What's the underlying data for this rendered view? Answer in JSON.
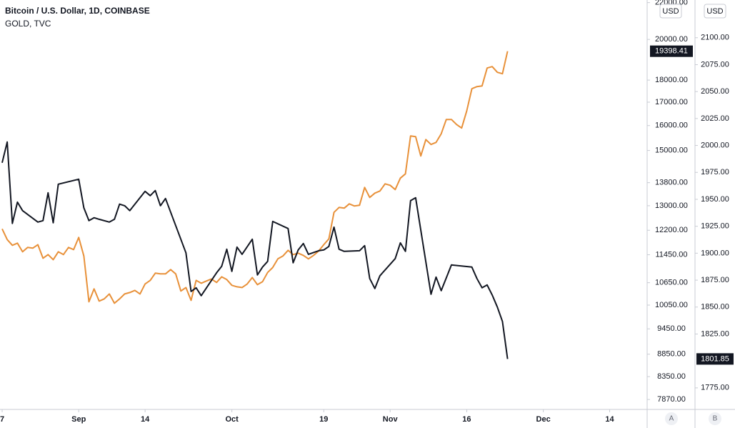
{
  "chart_data": {
    "type": "line",
    "ylog": true,
    "xlim": [
      -0.42,
      126.2
    ],
    "xticks": [
      {
        "value": 0,
        "label": "7"
      },
      {
        "value": 15,
        "label": "Sep"
      },
      {
        "value": 28,
        "label": "14"
      },
      {
        "value": 45,
        "label": "Oct"
      },
      {
        "value": 63,
        "label": "19"
      },
      {
        "value": 76,
        "label": "Nov"
      },
      {
        "value": 91,
        "label": "16"
      },
      {
        "value": 106,
        "label": "Dec"
      },
      {
        "value": 119,
        "label": "14"
      }
    ],
    "ylim": [
      7670,
      22150
    ],
    "yticks": [
      {
        "value": 22000,
        "label": "22000.00"
      },
      {
        "value": 20000,
        "label": "20000.00"
      },
      {
        "value": 18000,
        "label": "18000.00"
      },
      {
        "value": 17000,
        "label": "17000.00"
      },
      {
        "value": 16000,
        "label": "16000.00"
      },
      {
        "value": 15000,
        "label": "15000.00"
      },
      {
        "value": 13800,
        "label": "13800.00"
      },
      {
        "value": 13000,
        "label": "13000.00"
      },
      {
        "value": 12200,
        "label": "12200.00"
      },
      {
        "value": 11450,
        "label": "11450.00"
      },
      {
        "value": 10650,
        "label": "10650.00"
      },
      {
        "value": 10050,
        "label": "10050.00"
      },
      {
        "value": 9450,
        "label": "9450.00"
      },
      {
        "value": 8850,
        "label": "8850.00"
      },
      {
        "value": 8350,
        "label": "8350.00"
      },
      {
        "value": 7870,
        "label": "7870.00"
      }
    ],
    "y2lim": [
      1755,
      2135
    ],
    "y2ticks": [
      {
        "value": 2100,
        "label": "2100.00"
      },
      {
        "value": 2075,
        "label": "2075.00"
      },
      {
        "value": 2050,
        "label": "2050.00"
      },
      {
        "value": 2025,
        "label": "2025.00"
      },
      {
        "value": 2000,
        "label": "2000.00"
      },
      {
        "value": 1975,
        "label": "1975.00"
      },
      {
        "value": 1950,
        "label": "1950.00"
      },
      {
        "value": 1925,
        "label": "1925.00"
      },
      {
        "value": 1900,
        "label": "1900.00"
      },
      {
        "value": 1875,
        "label": "1875.00"
      },
      {
        "value": 1850,
        "label": "1850.00"
      },
      {
        "value": 1825,
        "label": "1825.00"
      },
      {
        "value": 1775,
        "label": "1775.00"
      }
    ],
    "currency": "USD",
    "panes": [
      "A",
      "B"
    ],
    "series": [
      {
        "name": "Bitcoin / U.S. Dollar, 1D, COINBASE",
        "color": "#e8913a",
        "x": [
          0,
          1,
          2,
          3,
          4,
          5,
          6,
          7,
          8,
          9,
          10,
          11,
          12,
          13,
          14,
          15,
          16,
          17,
          18,
          19,
          20,
          21,
          22,
          23,
          24,
          25,
          26,
          27,
          28,
          29,
          30,
          31,
          32,
          33,
          34,
          35,
          36,
          37,
          38,
          39,
          40,
          41,
          42,
          43,
          44,
          45,
          46,
          47,
          48,
          49,
          50,
          51,
          52,
          53,
          54,
          55,
          56,
          57,
          58,
          59,
          60,
          61,
          62,
          63,
          64,
          65,
          66,
          67,
          68,
          69,
          70,
          71,
          72,
          73,
          74,
          75,
          76,
          77,
          78,
          79,
          80,
          81,
          82,
          83,
          84,
          85,
          86,
          87,
          88,
          89,
          90,
          91,
          92,
          93,
          94,
          95,
          96,
          97,
          98,
          99
        ],
        "values": [
          12244,
          11908,
          11733,
          11798,
          11538,
          11668,
          11647,
          11754,
          11348,
          11454,
          11306,
          11538,
          11454,
          11668,
          11604,
          11974,
          11412,
          10136,
          10480,
          10154,
          10212,
          10344,
          10098,
          10212,
          10344,
          10383,
          10440,
          10344,
          10616,
          10714,
          10916,
          10896,
          10896,
          11018,
          10896,
          10422,
          10518,
          10174,
          10714,
          10636,
          10696,
          10754,
          10656,
          10814,
          10736,
          10578,
          10538,
          10518,
          10616,
          10794,
          10596,
          10676,
          10936,
          11078,
          11328,
          11412,
          11582,
          11454,
          11496,
          11432,
          11328,
          11432,
          11560,
          11754,
          11930,
          12778,
          12944,
          12918,
          13064,
          12990,
          13016,
          13632,
          13282,
          13432,
          13506,
          13758,
          13708,
          13556,
          13964,
          14120,
          15576,
          15548,
          14788,
          15432,
          15234,
          15318,
          15664,
          16254,
          16254,
          16044,
          15898,
          16618,
          17600,
          17700,
          17732,
          18572,
          18642,
          18366,
          18300,
          19398.41
        ]
      },
      {
        "name": "GOLD, TVC",
        "color": "#131722",
        "axis": "y2",
        "x": [
          0,
          1,
          2,
          3,
          4,
          7,
          8,
          9,
          10,
          11,
          15,
          16,
          17,
          18,
          19,
          21,
          22,
          23,
          24,
          25,
          28,
          29,
          30,
          31,
          32,
          36,
          37,
          38,
          39,
          42,
          43,
          44,
          45,
          46,
          47,
          49,
          50,
          51,
          52,
          53,
          56,
          57,
          58,
          59,
          60,
          62,
          63,
          64,
          65,
          66,
          67,
          70,
          71,
          72,
          73,
          74,
          77,
          78,
          79,
          80,
          81,
          84,
          85,
          86,
          88,
          92,
          93,
          94,
          95,
          96,
          97,
          98,
          99
        ],
        "values": [
          1983.9,
          2003.2,
          1927.6,
          1947.4,
          1939.5,
          1928.9,
          1930.2,
          1956.1,
          1928.2,
          1964.0,
          1968.7,
          1942.1,
          1930.2,
          1932.9,
          1931.5,
          1928.9,
          1931.5,
          1945.5,
          1944.1,
          1939.5,
          1957.4,
          1953.4,
          1958.1,
          1944.1,
          1950.8,
          1900.4,
          1864.5,
          1867.9,
          1860.6,
          1881.8,
          1887.8,
          1903.7,
          1883.1,
          1905.7,
          1899.0,
          1913.0,
          1879.8,
          1887.1,
          1892.4,
          1929.5,
          1922.9,
          1891.1,
          1903.0,
          1909.0,
          1899.0,
          1902.3,
          1903.0,
          1906.3,
          1924.2,
          1903.7,
          1901.7,
          1902.3,
          1907.0,
          1876.5,
          1867.2,
          1879.1,
          1895.0,
          1909.6,
          1901.7,
          1948.8,
          1951.4,
          1861.9,
          1877.8,
          1865.2,
          1889.1,
          1887.1,
          1876.5,
          1867.9,
          1870.5,
          1861.2,
          1850.0,
          1836.7,
          1801.85
        ]
      }
    ]
  }
}
